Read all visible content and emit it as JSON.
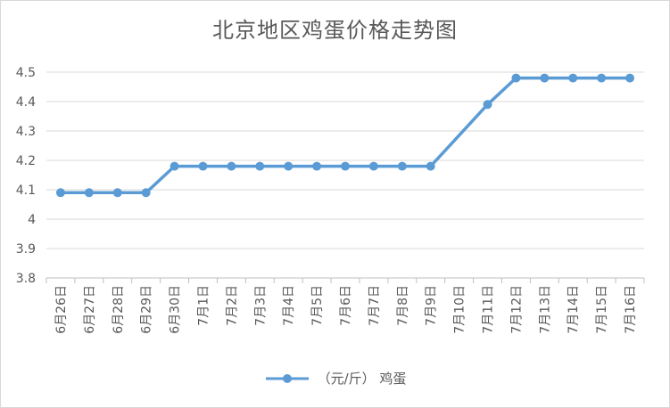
{
  "chart_data": {
    "type": "line",
    "title": "北京地区鸡蛋价格走势图",
    "xlabel": "",
    "ylabel": "",
    "categories": [
      "6月26日",
      "6月27日",
      "6月28日",
      "6月29日",
      "6月30日",
      "7月1日",
      "7月2日",
      "7月3日",
      "7月4日",
      "7月5日",
      "7月6日",
      "7月7日",
      "7月8日",
      "7月9日",
      "7月10日",
      "7月11日",
      "7月12日",
      "7月13日",
      "7月14日",
      "7月15日",
      "7月16日"
    ],
    "series": [
      {
        "name": "（元/斤） 鸡蛋",
        "values": [
          4.09,
          4.09,
          4.09,
          4.09,
          4.18,
          4.18,
          4.18,
          4.18,
          4.18,
          4.18,
          4.18,
          4.18,
          4.18,
          4.18,
          null,
          4.39,
          4.48,
          4.48,
          4.48,
          4.48,
          4.48
        ]
      }
    ],
    "ylim": [
      3.8,
      4.5
    ],
    "yticks": [
      "4.5",
      "4.4",
      "4.3",
      "4.2",
      "4.1",
      "4",
      "3.9",
      "3.8"
    ],
    "grid": true,
    "legend": "bottom",
    "color": "#5b9bd5"
  }
}
